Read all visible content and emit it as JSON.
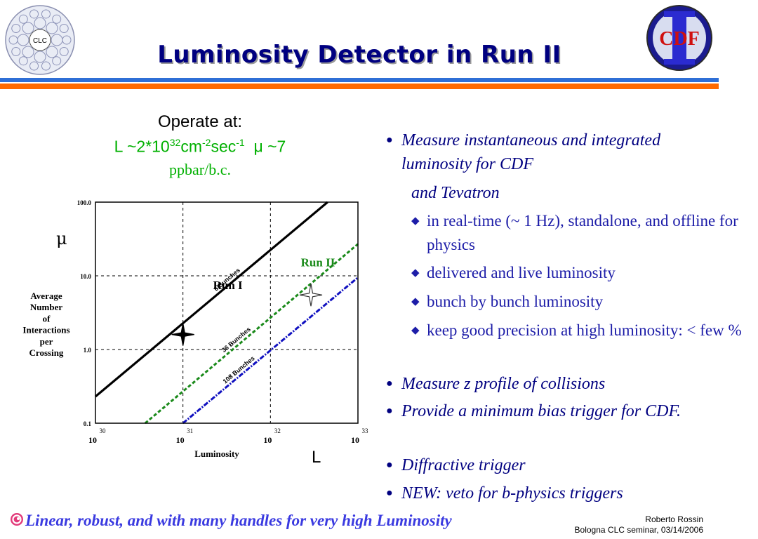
{
  "header": {
    "title": "Luminosity Detector in Run II",
    "logo_left_text": "CLC",
    "logo_right_text": "CDF"
  },
  "operate": {
    "label": "Operate at:",
    "lumi_prefix": "L ~2*10",
    "lumi_exp": "32",
    "lumi_cm": "cm",
    "cm_exp": "-2",
    "lumi_sec": "sec",
    "sec_exp": "-1",
    "mu_part": "μ ~7",
    "ppbar": "ppbar/b.c."
  },
  "axis_symbols": {
    "mu": "μ",
    "L": "L"
  },
  "chart_data": {
    "type": "line",
    "xscale": "log",
    "yscale": "log",
    "xlim": [
      1e+30,
      1e+33
    ],
    "ylim": [
      0.1,
      100
    ],
    "xlabel": "Luminosity",
    "ylabel": [
      "Average",
      "Number",
      "of",
      "Interactions",
      "per",
      "Crossing"
    ],
    "x_ticks": [
      {
        "base": "10",
        "exp": "30"
      },
      {
        "base": "10",
        "exp": "31"
      },
      {
        "base": "10",
        "exp": "32"
      },
      {
        "base": "10",
        "exp": "33"
      }
    ],
    "y_ticks": [
      "0.1",
      "1.0",
      "10.0",
      "100.0"
    ],
    "grid": "dashed",
    "series": [
      {
        "name": "6 Bunches",
        "color": "#000000",
        "style": "solid",
        "x": [
          1e+30,
          4.5e+32
        ],
        "y": [
          0.23,
          100
        ]
      },
      {
        "name": "36 Bunches",
        "color": "#1a8a1a",
        "style": "dashed",
        "x": [
          3.7e+30,
          1e+33
        ],
        "y": [
          0.1,
          27
        ]
      },
      {
        "name": "108 Bunches",
        "color": "#1010c0",
        "style": "dashdot",
        "x": [
          1e+31,
          1e+33
        ],
        "y": [
          0.1,
          9.5
        ]
      }
    ],
    "annotations": [
      {
        "text": "Run I",
        "x": 1e+31,
        "y": 2.3,
        "color": "#000000"
      },
      {
        "text": "Run II",
        "x": 2.9e+32,
        "y": 7.0,
        "color": "#1a8a1a"
      }
    ]
  },
  "bullets": [
    {
      "level": 1,
      "text": "Measure instantaneous and integrated luminosity for CDF"
    },
    {
      "level": 0,
      "text": "and Tevatron"
    },
    {
      "level": 2,
      "text": "in real-time (~ 1 Hz), standalone, and offline for physics"
    },
    {
      "level": 2,
      "text": "delivered and live luminosity"
    },
    {
      "level": 2,
      "text": "bunch by bunch luminosity"
    },
    {
      "level": 2,
      "text": "keep good precision at high luminosity:  < few %"
    },
    {
      "level": 1,
      "text": "Measure z profile of collisions"
    },
    {
      "level": 1,
      "text": "Provide a minimum bias trigger for CDF."
    },
    {
      "level": 1,
      "text": "Diffractive trigger"
    },
    {
      "level": 1,
      "text": "NEW: veto for b-physics triggers"
    }
  ],
  "footer": {
    "text": "Linear, robust, and with many handles for very high Luminosity",
    "author": "Roberto Rossin",
    "seminar": "Bologna CLC seminar, 03/14/2006"
  }
}
